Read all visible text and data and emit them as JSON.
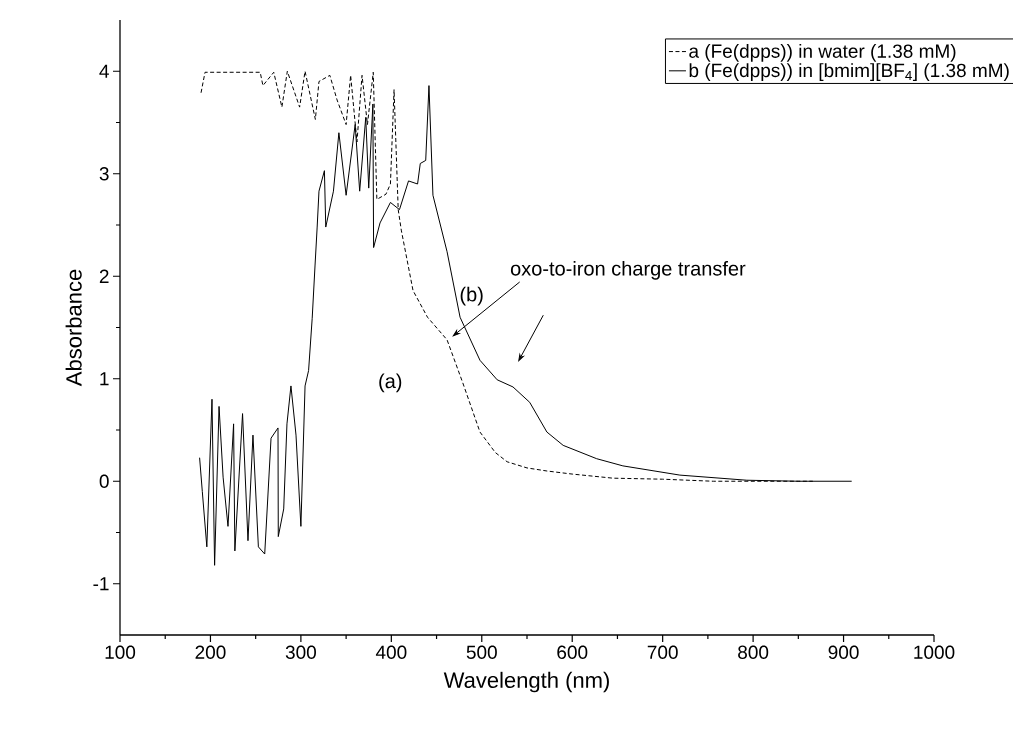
{
  "chart_data": {
    "type": "line",
    "xlabel": "Wavelength (nm)",
    "ylabel": "Absorbance",
    "xlim": [
      100,
      1000
    ],
    "ylim": [
      -1.5,
      4.5
    ],
    "xticks": [
      100,
      200,
      300,
      400,
      500,
      600,
      700,
      800,
      900,
      1000
    ],
    "yticks": [
      -1,
      0,
      1,
      2,
      3,
      4
    ],
    "grid": false,
    "legend": "top right",
    "series": [
      {
        "name": "a (Fe(dpps)) in water (1.38 mM)",
        "color": "#000000",
        "line_style": "dashed",
        "x": [
          189.6,
          194,
          255,
          258,
          270,
          279,
          285,
          298.6,
          304.6,
          316,
          320,
          332,
          340,
          350,
          355,
          362,
          367.6,
          373.6,
          380,
          384,
          394,
          399,
          403,
          407.6,
          411,
          424,
          440,
          461.6,
          479,
          498,
          515,
          528,
          550,
          572,
          600,
          645,
          700,
          756,
          810,
          866
        ],
        "values": [
          3.79,
          3.99,
          3.99,
          3.86,
          3.99,
          3.65,
          4.0,
          3.65,
          4.0,
          3.53,
          3.9,
          3.96,
          3.72,
          3.48,
          3.96,
          3.31,
          3.96,
          3.48,
          3.99,
          2.75,
          2.8,
          2.9,
          3.82,
          2.65,
          2.45,
          1.86,
          1.6,
          1.38,
          0.96,
          0.48,
          0.28,
          0.19,
          0.13,
          0.1,
          0.07,
          0.03,
          0.02,
          0.0,
          0.0,
          0.0
        ]
      },
      {
        "name": "b (Fe(dpps)) in [bmim][BF$_{4}$] (1.38 mM)",
        "color": "#000000",
        "line_style": "solid",
        "x": [
          188,
          191,
          196,
          201.7,
          204.6,
          209.5,
          214,
          219.4,
          225.6,
          227,
          235.5,
          241.5,
          247,
          253,
          260,
          267,
          274.7,
          275,
          281,
          284.6,
          289,
          294.6,
          300,
          304.6,
          308.5,
          312.5,
          315.6,
          318,
          320,
          326,
          327.5,
          336,
          342,
          350,
          360,
          365,
          371.7,
          375,
          379.6,
          380.4,
          387.5,
          399,
          409,
          419,
          429,
          432,
          438,
          441.6,
          446,
          461.6,
          476,
          498,
          517,
          534.5,
          553,
          572,
          590,
          627,
          656,
          719,
          793,
          850,
          909
        ],
        "values": [
          0.23,
          -0.1,
          -0.64,
          0.8,
          -0.82,
          0.73,
          0.04,
          -0.44,
          0.56,
          -0.68,
          0.66,
          -0.58,
          0.45,
          -0.64,
          -0.71,
          0.42,
          0.52,
          -0.54,
          -0.27,
          0.56,
          0.93,
          0.45,
          -0.44,
          0.93,
          1.08,
          1.59,
          2.1,
          2.48,
          2.83,
          3.03,
          2.48,
          2.83,
          3.4,
          2.79,
          3.48,
          2.83,
          3.55,
          2.86,
          3.68,
          2.28,
          2.52,
          2.72,
          2.65,
          2.93,
          2.9,
          3.1,
          3.13,
          3.86,
          2.79,
          2.24,
          1.6,
          1.18,
          0.99,
          0.92,
          0.77,
          0.48,
          0.35,
          0.22,
          0.15,
          0.06,
          0.01,
          0.0,
          0.0
        ]
      }
    ],
    "annotations": [
      "(a)",
      "(b)",
      "oxo-to-iron charge transfer"
    ]
  }
}
